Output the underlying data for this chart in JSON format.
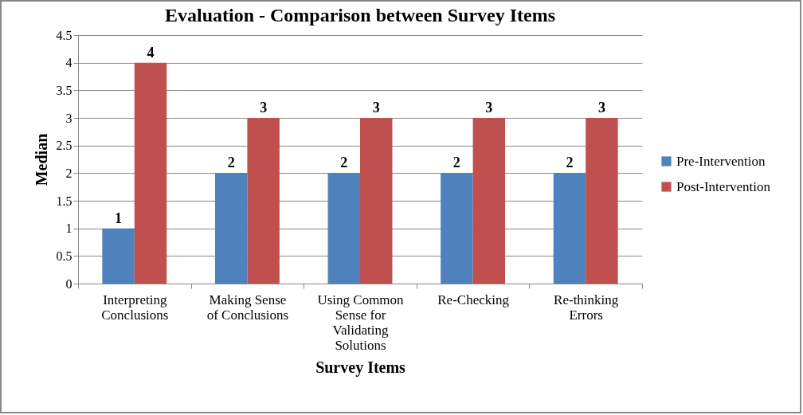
{
  "chart_data": {
    "type": "bar",
    "title": "Evaluation - Comparison between Survey Items",
    "xlabel": "Survey Items",
    "ylabel": "Median",
    "categories": [
      "Interpreting Conclusions",
      "Making Sense of Conclusions",
      "Using Common Sense for Validating Solutions",
      "Re-Checking",
      "Re-thinking Errors"
    ],
    "series": [
      {
        "name": "Pre-Intervention",
        "color": "#4f81bd",
        "values": [
          1,
          2,
          2,
          2,
          2
        ]
      },
      {
        "name": "Post-Intervention",
        "color": "#c0504d",
        "values": [
          4,
          3,
          3,
          3,
          3
        ]
      }
    ],
    "ylim": [
      0,
      4.5
    ],
    "yticks": [
      0,
      0.5,
      1,
      1.5,
      2,
      2.5,
      3,
      3.5,
      4,
      4.5
    ],
    "grid": "y",
    "legend": "right",
    "data_labels": true
  }
}
